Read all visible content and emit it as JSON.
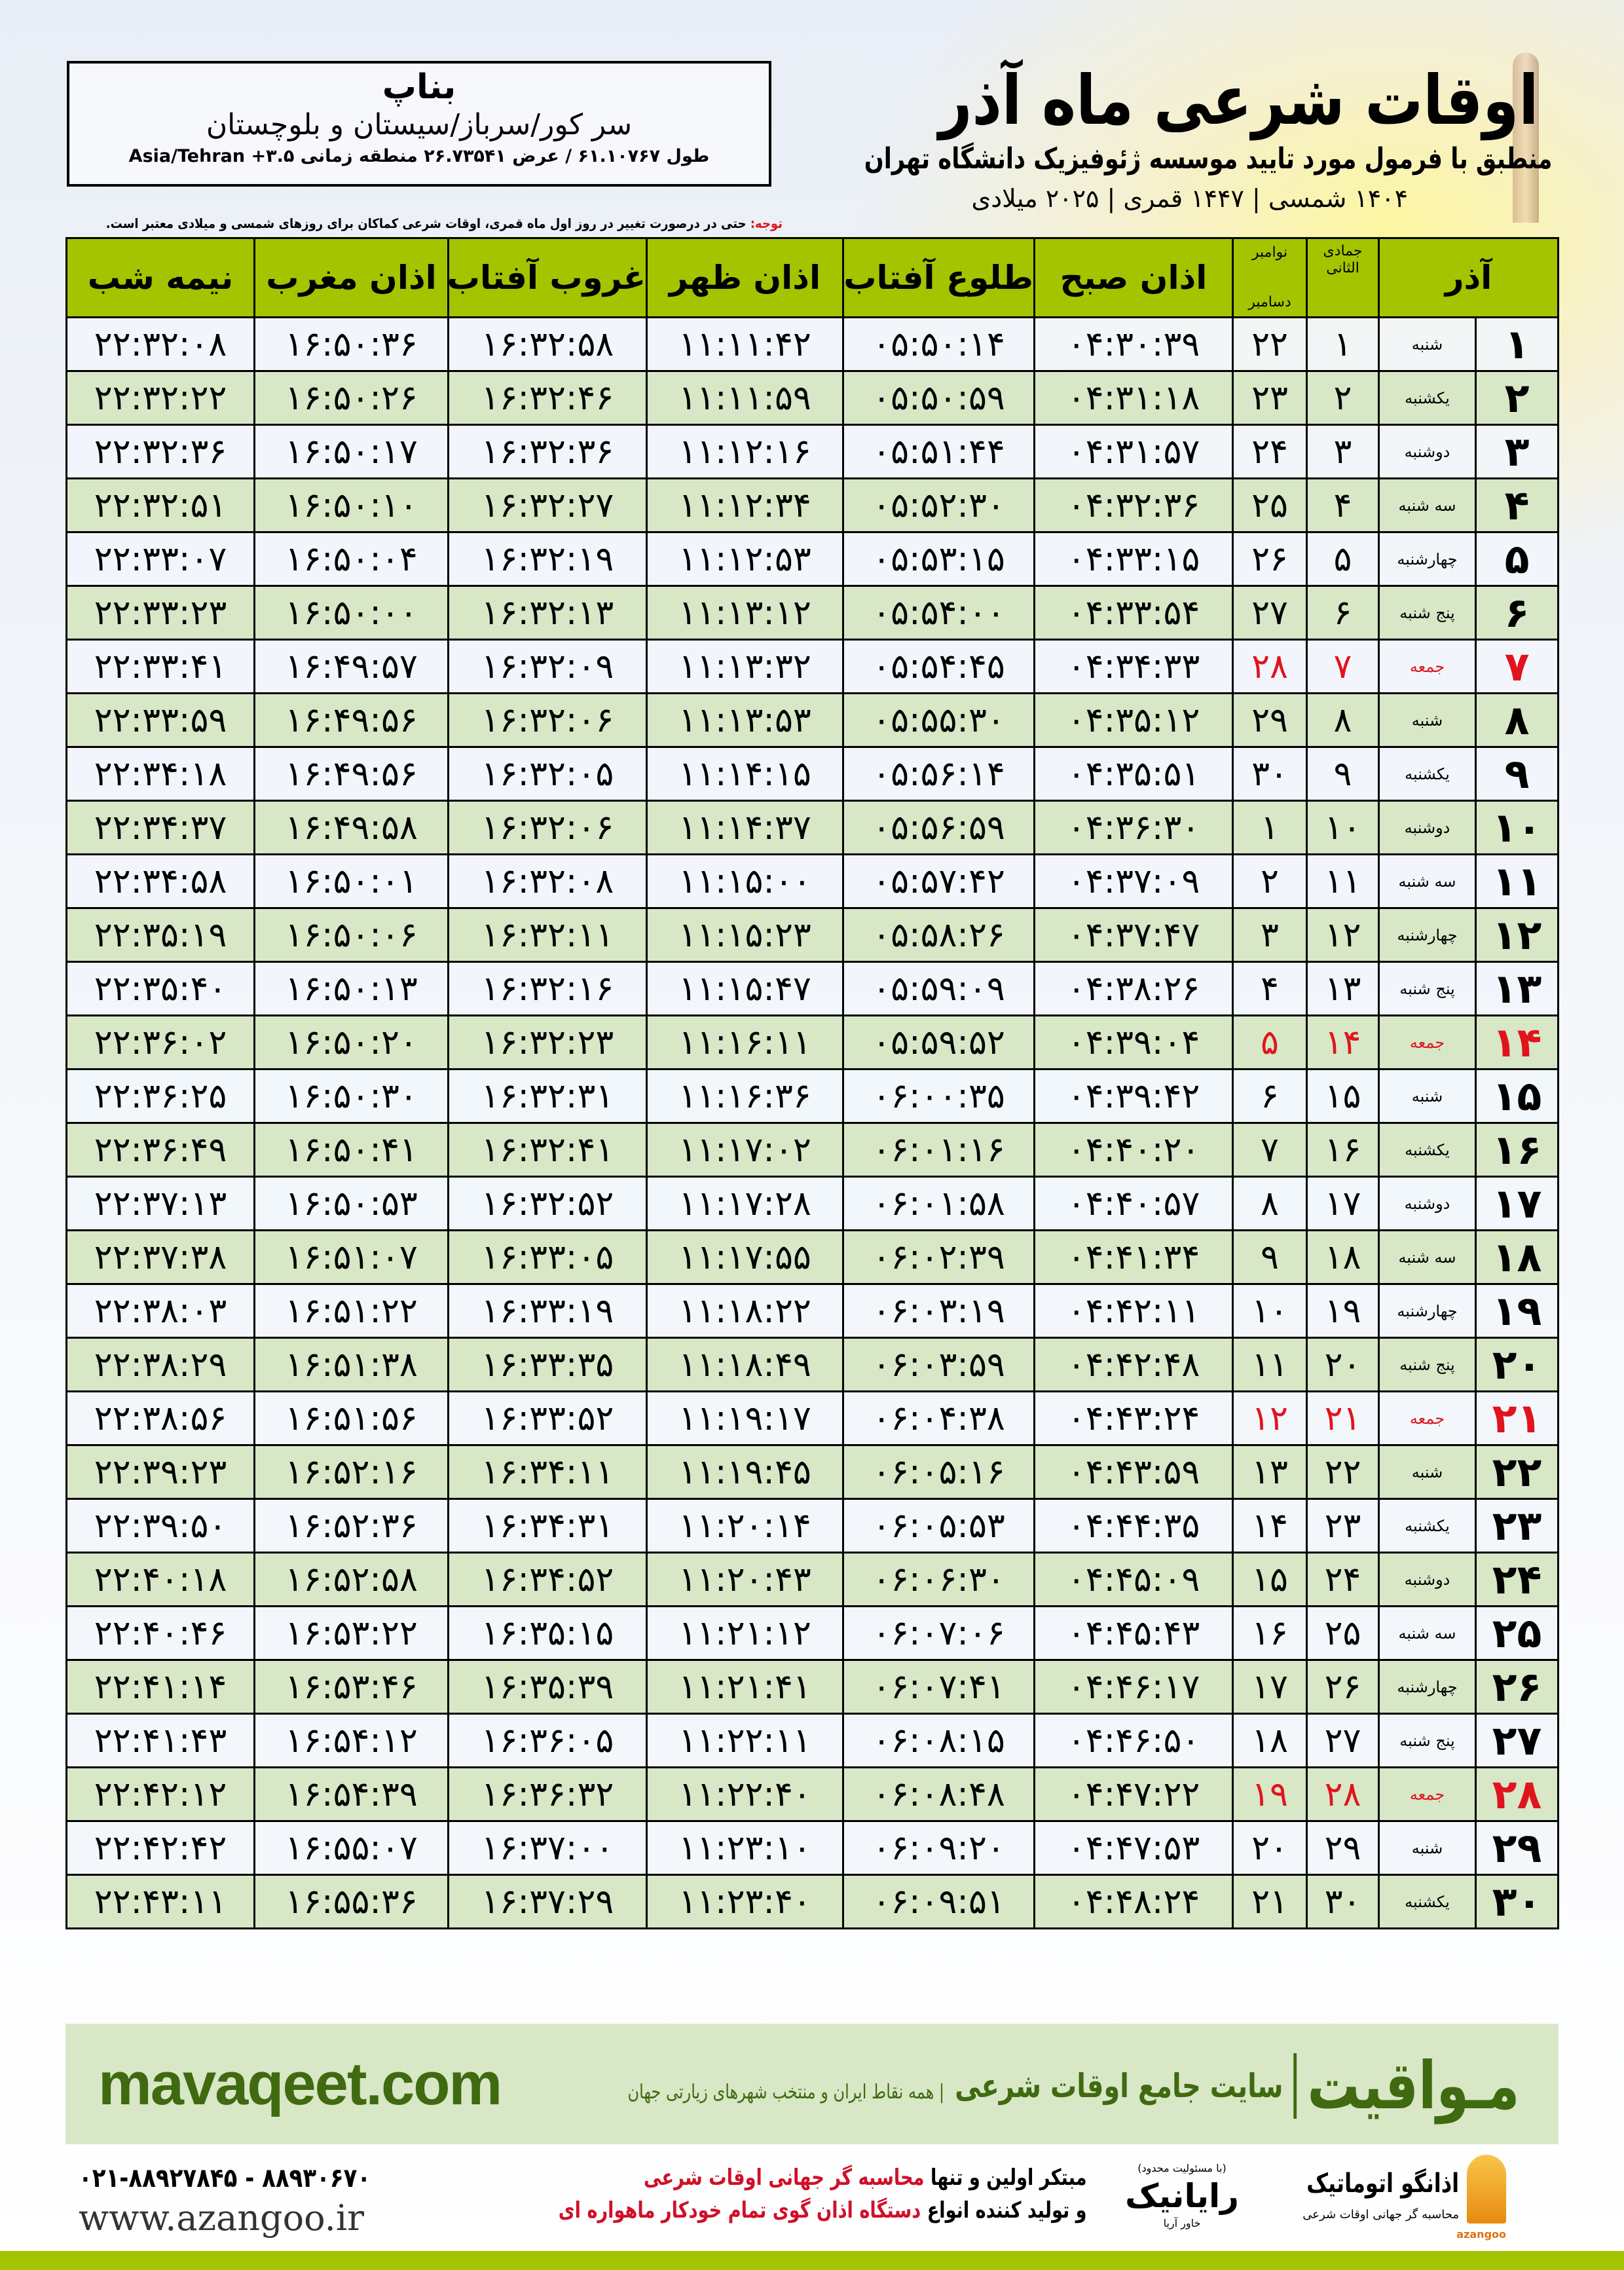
{
  "header": {
    "title": "اوقات شرعی ماه آذر",
    "subtitle": "منطبق با فرمول مورد تایید موسسه ژئوفیزیک دانشگاه تهران",
    "date_line": "۱۴۰۴ شمسی | ۱۴۴۷ قمری | ۲۰۲۵ میلادی"
  },
  "location": {
    "city": "بناپ",
    "region": "سر کور/سرباز/سیستان و بلوچستان",
    "coords": "طول ۶۱.۱۰۷۶۷ / عرض ۲۶.۷۳۵۴۱ منطقه زمانی Asia/Tehran +۳.۵"
  },
  "note": {
    "label": "توجه:",
    "text": " حتی در درصورت تغییر در روز اول ماه قمری، اوقات شرعی کماکان برای روزهای شمسی و میلادی معتبر است."
  },
  "table": {
    "headers": {
      "month": "آذر",
      "hijri": "جمادی الثانی",
      "greg_top": "نوامبر",
      "greg_bottom": "دسامبر",
      "fajr": "اذان صبح",
      "sunrise": "طلوع آفتاب",
      "dhuhr": "اذان ظهر",
      "sunset": "غروب آفتاب",
      "maghrib": "اذان مغرب",
      "midnight": "نیمه شب"
    },
    "friday_color": "#e0141e",
    "header_color": "#a4c400",
    "rows": [
      {
        "day": "۱",
        "weekday": "شنبه",
        "hijri": "۱",
        "greg": "۲۲",
        "fajr": "۰۴:۳۰:۳۹",
        "sunrise": "۰۵:۵۰:۱۴",
        "dhuhr": "۱۱:۱۱:۴۲",
        "sunset": "۱۶:۳۲:۵۸",
        "maghrib": "۱۶:۵۰:۳۶",
        "midnight": "۲۲:۳۲:۰۸"
      },
      {
        "day": "۲",
        "weekday": "یکشنبه",
        "hijri": "۲",
        "greg": "۲۳",
        "fajr": "۰۴:۳۱:۱۸",
        "sunrise": "۰۵:۵۰:۵۹",
        "dhuhr": "۱۱:۱۱:۵۹",
        "sunset": "۱۶:۳۲:۴۶",
        "maghrib": "۱۶:۵۰:۲۶",
        "midnight": "۲۲:۳۲:۲۲"
      },
      {
        "day": "۳",
        "weekday": "دوشنبه",
        "hijri": "۳",
        "greg": "۲۴",
        "fajr": "۰۴:۳۱:۵۷",
        "sunrise": "۰۵:۵۱:۴۴",
        "dhuhr": "۱۱:۱۲:۱۶",
        "sunset": "۱۶:۳۲:۳۶",
        "maghrib": "۱۶:۵۰:۱۷",
        "midnight": "۲۲:۳۲:۳۶"
      },
      {
        "day": "۴",
        "weekday": "سه شنبه",
        "hijri": "۴",
        "greg": "۲۵",
        "fajr": "۰۴:۳۲:۳۶",
        "sunrise": "۰۵:۵۲:۳۰",
        "dhuhr": "۱۱:۱۲:۳۴",
        "sunset": "۱۶:۳۲:۲۷",
        "maghrib": "۱۶:۵۰:۱۰",
        "midnight": "۲۲:۳۲:۵۱"
      },
      {
        "day": "۵",
        "weekday": "چهارشنبه",
        "hijri": "۵",
        "greg": "۲۶",
        "fajr": "۰۴:۳۳:۱۵",
        "sunrise": "۰۵:۵۳:۱۵",
        "dhuhr": "۱۱:۱۲:۵۳",
        "sunset": "۱۶:۳۲:۱۹",
        "maghrib": "۱۶:۵۰:۰۴",
        "midnight": "۲۲:۳۳:۰۷"
      },
      {
        "day": "۶",
        "weekday": "پنج شنبه",
        "hijri": "۶",
        "greg": "۲۷",
        "fajr": "۰۴:۳۳:۵۴",
        "sunrise": "۰۵:۵۴:۰۰",
        "dhuhr": "۱۱:۱۳:۱۲",
        "sunset": "۱۶:۳۲:۱۳",
        "maghrib": "۱۶:۵۰:۰۰",
        "midnight": "۲۲:۳۳:۲۳"
      },
      {
        "day": "۷",
        "weekday": "جمعه",
        "hijri": "۷",
        "greg": "۲۸",
        "fajr": "۰۴:۳۴:۳۳",
        "sunrise": "۰۵:۵۴:۴۵",
        "dhuhr": "۱۱:۱۳:۳۲",
        "sunset": "۱۶:۳۲:۰۹",
        "maghrib": "۱۶:۴۹:۵۷",
        "midnight": "۲۲:۳۳:۴۱",
        "friday": true
      },
      {
        "day": "۸",
        "weekday": "شنبه",
        "hijri": "۸",
        "greg": "۲۹",
        "fajr": "۰۴:۳۵:۱۲",
        "sunrise": "۰۵:۵۵:۳۰",
        "dhuhr": "۱۱:۱۳:۵۳",
        "sunset": "۱۶:۳۲:۰۶",
        "maghrib": "۱۶:۴۹:۵۶",
        "midnight": "۲۲:۳۳:۵۹"
      },
      {
        "day": "۹",
        "weekday": "یکشنبه",
        "hijri": "۹",
        "greg": "۳۰",
        "fajr": "۰۴:۳۵:۵۱",
        "sunrise": "۰۵:۵۶:۱۴",
        "dhuhr": "۱۱:۱۴:۱۵",
        "sunset": "۱۶:۳۲:۰۵",
        "maghrib": "۱۶:۴۹:۵۶",
        "midnight": "۲۲:۳۴:۱۸"
      },
      {
        "day": "۱۰",
        "weekday": "دوشنبه",
        "hijri": "۱۰",
        "greg": "۱",
        "fajr": "۰۴:۳۶:۳۰",
        "sunrise": "۰۵:۵۶:۵۹",
        "dhuhr": "۱۱:۱۴:۳۷",
        "sunset": "۱۶:۳۲:۰۶",
        "maghrib": "۱۶:۴۹:۵۸",
        "midnight": "۲۲:۳۴:۳۷"
      },
      {
        "day": "۱۱",
        "weekday": "سه شنبه",
        "hijri": "۱۱",
        "greg": "۲",
        "fajr": "۰۴:۳۷:۰۹",
        "sunrise": "۰۵:۵۷:۴۲",
        "dhuhr": "۱۱:۱۵:۰۰",
        "sunset": "۱۶:۳۲:۰۸",
        "maghrib": "۱۶:۵۰:۰۱",
        "midnight": "۲۲:۳۴:۵۸"
      },
      {
        "day": "۱۲",
        "weekday": "چهارشنبه",
        "hijri": "۱۲",
        "greg": "۳",
        "fajr": "۰۴:۳۷:۴۷",
        "sunrise": "۰۵:۵۸:۲۶",
        "dhuhr": "۱۱:۱۵:۲۳",
        "sunset": "۱۶:۳۲:۱۱",
        "maghrib": "۱۶:۵۰:۰۶",
        "midnight": "۲۲:۳۵:۱۹"
      },
      {
        "day": "۱۳",
        "weekday": "پنج شنبه",
        "hijri": "۱۳",
        "greg": "۴",
        "fajr": "۰۴:۳۸:۲۶",
        "sunrise": "۰۵:۵۹:۰۹",
        "dhuhr": "۱۱:۱۵:۴۷",
        "sunset": "۱۶:۳۲:۱۶",
        "maghrib": "۱۶:۵۰:۱۳",
        "midnight": "۲۲:۳۵:۴۰"
      },
      {
        "day": "۱۴",
        "weekday": "جمعه",
        "hijri": "۱۴",
        "greg": "۵",
        "fajr": "۰۴:۳۹:۰۴",
        "sunrise": "۰۵:۵۹:۵۲",
        "dhuhr": "۱۱:۱۶:۱۱",
        "sunset": "۱۶:۳۲:۲۳",
        "maghrib": "۱۶:۵۰:۲۰",
        "midnight": "۲۲:۳۶:۰۲",
        "friday": true
      },
      {
        "day": "۱۵",
        "weekday": "شنبه",
        "hijri": "۱۵",
        "greg": "۶",
        "fajr": "۰۴:۳۹:۴۲",
        "sunrise": "۰۶:۰۰:۳۵",
        "dhuhr": "۱۱:۱۶:۳۶",
        "sunset": "۱۶:۳۲:۳۱",
        "maghrib": "۱۶:۵۰:۳۰",
        "midnight": "۲۲:۳۶:۲۵"
      },
      {
        "day": "۱۶",
        "weekday": "یکشنبه",
        "hijri": "۱۶",
        "greg": "۷",
        "fajr": "۰۴:۴۰:۲۰",
        "sunrise": "۰۶:۰۱:۱۶",
        "dhuhr": "۱۱:۱۷:۰۲",
        "sunset": "۱۶:۳۲:۴۱",
        "maghrib": "۱۶:۵۰:۴۱",
        "midnight": "۲۲:۳۶:۴۹"
      },
      {
        "day": "۱۷",
        "weekday": "دوشنبه",
        "hijri": "۱۷",
        "greg": "۸",
        "fajr": "۰۴:۴۰:۵۷",
        "sunrise": "۰۶:۰۱:۵۸",
        "dhuhr": "۱۱:۱۷:۲۸",
        "sunset": "۱۶:۳۲:۵۲",
        "maghrib": "۱۶:۵۰:۵۳",
        "midnight": "۲۲:۳۷:۱۳"
      },
      {
        "day": "۱۸",
        "weekday": "سه شنبه",
        "hijri": "۱۸",
        "greg": "۹",
        "fajr": "۰۴:۴۱:۳۴",
        "sunrise": "۰۶:۰۲:۳۹",
        "dhuhr": "۱۱:۱۷:۵۵",
        "sunset": "۱۶:۳۳:۰۵",
        "maghrib": "۱۶:۵۱:۰۷",
        "midnight": "۲۲:۳۷:۳۸"
      },
      {
        "day": "۱۹",
        "weekday": "چهارشنبه",
        "hijri": "۱۹",
        "greg": "۱۰",
        "fajr": "۰۴:۴۲:۱۱",
        "sunrise": "۰۶:۰۳:۱۹",
        "dhuhr": "۱۱:۱۸:۲۲",
        "sunset": "۱۶:۳۳:۱۹",
        "maghrib": "۱۶:۵۱:۲۲",
        "midnight": "۲۲:۳۸:۰۳"
      },
      {
        "day": "۲۰",
        "weekday": "پنج شنبه",
        "hijri": "۲۰",
        "greg": "۱۱",
        "fajr": "۰۴:۴۲:۴۸",
        "sunrise": "۰۶:۰۳:۵۹",
        "dhuhr": "۱۱:۱۸:۴۹",
        "sunset": "۱۶:۳۳:۳۵",
        "maghrib": "۱۶:۵۱:۳۸",
        "midnight": "۲۲:۳۸:۲۹"
      },
      {
        "day": "۲۱",
        "weekday": "جمعه",
        "hijri": "۲۱",
        "greg": "۱۲",
        "fajr": "۰۴:۴۳:۲۴",
        "sunrise": "۰۶:۰۴:۳۸",
        "dhuhr": "۱۱:۱۹:۱۷",
        "sunset": "۱۶:۳۳:۵۲",
        "maghrib": "۱۶:۵۱:۵۶",
        "midnight": "۲۲:۳۸:۵۶",
        "friday": true
      },
      {
        "day": "۲۲",
        "weekday": "شنبه",
        "hijri": "۲۲",
        "greg": "۱۳",
        "fajr": "۰۴:۴۳:۵۹",
        "sunrise": "۰۶:۰۵:۱۶",
        "dhuhr": "۱۱:۱۹:۴۵",
        "sunset": "۱۶:۳۴:۱۱",
        "maghrib": "۱۶:۵۲:۱۶",
        "midnight": "۲۲:۳۹:۲۳"
      },
      {
        "day": "۲۳",
        "weekday": "یکشنبه",
        "hijri": "۲۳",
        "greg": "۱۴",
        "fajr": "۰۴:۴۴:۳۵",
        "sunrise": "۰۶:۰۵:۵۳",
        "dhuhr": "۱۱:۲۰:۱۴",
        "sunset": "۱۶:۳۴:۳۱",
        "maghrib": "۱۶:۵۲:۳۶",
        "midnight": "۲۲:۳۹:۵۰"
      },
      {
        "day": "۲۴",
        "weekday": "دوشنبه",
        "hijri": "۲۴",
        "greg": "۱۵",
        "fajr": "۰۴:۴۵:۰۹",
        "sunrise": "۰۶:۰۶:۳۰",
        "dhuhr": "۱۱:۲۰:۴۳",
        "sunset": "۱۶:۳۴:۵۲",
        "maghrib": "۱۶:۵۲:۵۸",
        "midnight": "۲۲:۴۰:۱۸"
      },
      {
        "day": "۲۵",
        "weekday": "سه شنبه",
        "hijri": "۲۵",
        "greg": "۱۶",
        "fajr": "۰۴:۴۵:۴۳",
        "sunrise": "۰۶:۰۷:۰۶",
        "dhuhr": "۱۱:۲۱:۱۲",
        "sunset": "۱۶:۳۵:۱۵",
        "maghrib": "۱۶:۵۳:۲۲",
        "midnight": "۲۲:۴۰:۴۶"
      },
      {
        "day": "۲۶",
        "weekday": "چهارشنبه",
        "hijri": "۲۶",
        "greg": "۱۷",
        "fajr": "۰۴:۴۶:۱۷",
        "sunrise": "۰۶:۰۷:۴۱",
        "dhuhr": "۱۱:۲۱:۴۱",
        "sunset": "۱۶:۳۵:۳۹",
        "maghrib": "۱۶:۵۳:۴۶",
        "midnight": "۲۲:۴۱:۱۴"
      },
      {
        "day": "۲۷",
        "weekday": "پنج شنبه",
        "hijri": "۲۷",
        "greg": "۱۸",
        "fajr": "۰۴:۴۶:۵۰",
        "sunrise": "۰۶:۰۸:۱۵",
        "dhuhr": "۱۱:۲۲:۱۱",
        "sunset": "۱۶:۳۶:۰۵",
        "maghrib": "۱۶:۵۴:۱۲",
        "midnight": "۲۲:۴۱:۴۳"
      },
      {
        "day": "۲۸",
        "weekday": "جمعه",
        "hijri": "۲۸",
        "greg": "۱۹",
        "fajr": "۰۴:۴۷:۲۲",
        "sunrise": "۰۶:۰۸:۴۸",
        "dhuhr": "۱۱:۲۲:۴۰",
        "sunset": "۱۶:۳۶:۳۲",
        "maghrib": "۱۶:۵۴:۳۹",
        "midnight": "۲۲:۴۲:۱۲",
        "friday": true
      },
      {
        "day": "۲۹",
        "weekday": "شنبه",
        "hijri": "۲۹",
        "greg": "۲۰",
        "fajr": "۰۴:۴۷:۵۳",
        "sunrise": "۰۶:۰۹:۲۰",
        "dhuhr": "۱۱:۲۳:۱۰",
        "sunset": "۱۶:۳۷:۰۰",
        "maghrib": "۱۶:۵۵:۰۷",
        "midnight": "۲۲:۴۲:۴۲"
      },
      {
        "day": "۳۰",
        "weekday": "یکشنبه",
        "hijri": "۳۰",
        "greg": "۲۱",
        "fajr": "۰۴:۴۸:۲۴",
        "sunrise": "۰۶:۰۹:۵۱",
        "dhuhr": "۱۱:۲۳:۴۰",
        "sunset": "۱۶:۳۷:۲۹",
        "maghrib": "۱۶:۵۵:۳۶",
        "midnight": "۲۲:۴۳:۱۱"
      }
    ]
  },
  "footer": {
    "banner": {
      "brand": "مـواقیت",
      "tagline": "سایت جامع اوقات شرعی",
      "tagline2": "| همه نقاط ایران و منتخب شهرهای زیارتی جهان",
      "site": "mavaqeet.com",
      "color": "#3f6a10"
    },
    "phones": "۰۲۱-۸۸۹۲۷۸۴۵ - ۸۸۹۳۰۶۷۰",
    "website": "www.azangoo.ir",
    "slogan": {
      "line1_a": "مبتکر اولین و تنها ",
      "line1_b": "محاسبه گر جهانی اوقات شرعی",
      "line2_a": "و تولید کننده انواع ",
      "line2_b": "دستگاه اذان گوی تمام خودکار ماهواره ای"
    },
    "raynik": {
      "top": "(با مسئولیت محدود)",
      "name": "رایانیک",
      "sub": "خاور آریا"
    },
    "azangoo": {
      "name": "اذانگو اتوماتیک",
      "sub": "محاسبه گر جهانی اوقات شرعی",
      "en": "azangoo"
    }
  }
}
